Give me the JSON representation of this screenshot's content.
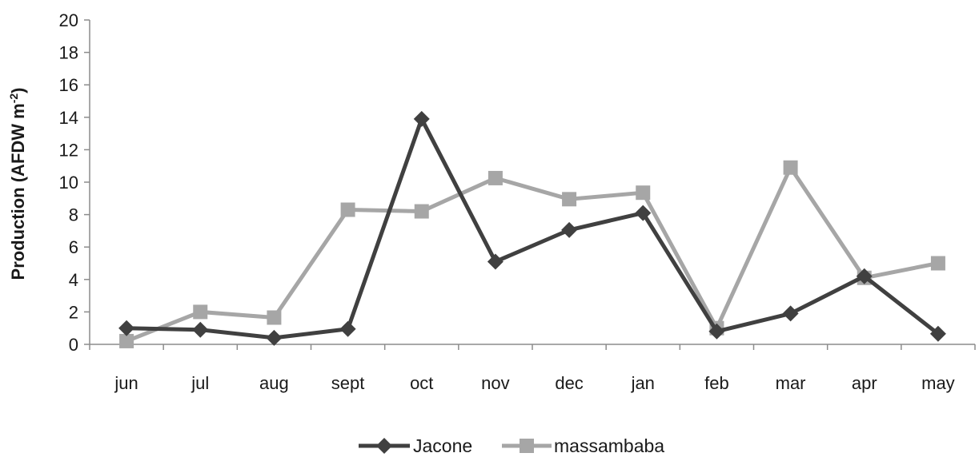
{
  "chart_data": {
    "type": "line",
    "title": "",
    "xlabel": "",
    "ylabel": "Production (AFDW m",
    "ylabel_sup": "-2",
    "ylabel_close": ")",
    "ylim": [
      0,
      20
    ],
    "yticks": [
      "0",
      "2",
      "4",
      "6",
      "8",
      "10",
      "12",
      "14",
      "16",
      "18",
      "20"
    ],
    "categories": [
      "jun",
      "jul",
      "aug",
      "sept",
      "oct",
      "nov",
      "dec",
      "jan",
      "feb",
      "mar",
      "apr",
      "may"
    ],
    "series": [
      {
        "name": "Jacone",
        "marker": "diamond",
        "color": "#404040",
        "values": [
          1.0,
          0.9,
          0.4,
          0.95,
          13.9,
          5.1,
          7.05,
          8.1,
          0.8,
          1.9,
          4.2,
          0.65
        ]
      },
      {
        "name": "massambaba",
        "marker": "square",
        "color": "#a6a6a6",
        "values": [
          0.2,
          2.0,
          1.65,
          8.3,
          8.2,
          10.25,
          8.95,
          9.35,
          1.0,
          10.9,
          4.1,
          5.0
        ]
      }
    ],
    "grid": false,
    "legend_position": "bottom"
  }
}
